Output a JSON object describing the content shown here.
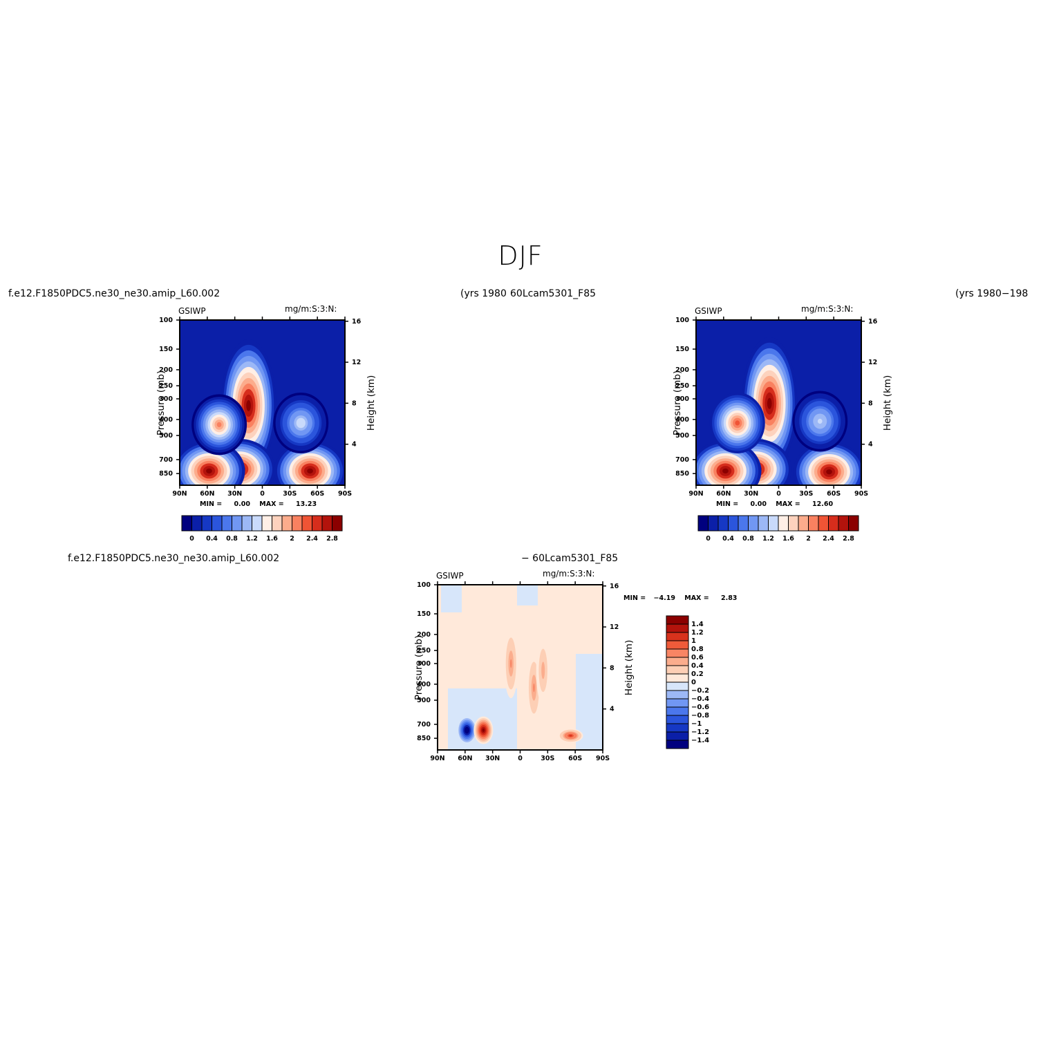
{
  "page": {
    "title": "DJF"
  },
  "headers": {
    "top_left_case": "f.e12.F1850PDC5.ne30_ne30.amip_L60.002",
    "top_center_years": "(yrs 1980",
    "top_center_case": "60Lcam5301_F85",
    "top_right_years": "(yrs 1980−198",
    "bottom_left_case": "f.e12.F1850PDC5.ne30_ne30.amip_L60.002",
    "bottom_center_case": "− 60Lcam5301_F85"
  },
  "colors": {
    "cool": [
      "#00007f",
      "#0b1fa8",
      "#1638c4",
      "#2b55dc",
      "#4b77ec",
      "#7197f3",
      "#9cb8f6",
      "#c9dafb"
    ],
    "warm": [
      "#ffefe6",
      "#fdd2bd",
      "#fcac8c",
      "#f98160",
      "#f05435",
      "#d62d1c",
      "#b3130c",
      "#8b0000"
    ],
    "diff": [
      "#00007f",
      "#0b1fa8",
      "#1638c4",
      "#2b55dc",
      "#4b77ec",
      "#7197f3",
      "#9cb8f6",
      "#d7e6fa",
      "#ffe9da",
      "#fdcfb5",
      "#fbad8d",
      "#f88564",
      "#ef5b3a",
      "#d8321c",
      "#b3130c",
      "#8b0000"
    ]
  },
  "chart_data": [
    {
      "type": "heatmap",
      "panel": "case1",
      "var_label": "GSIWP",
      "units_label": "mg/m:S:3:N:",
      "xlabel": "",
      "ylabel": "Pressure (mb)",
      "ylabel_right": "Height (km)",
      "x_ticks": [
        "90N",
        "60N",
        "30N",
        "0",
        "30S",
        "60S",
        "90S"
      ],
      "y_ticks": [
        "100",
        "150",
        "200",
        "250",
        "300",
        "400",
        "500",
        "700",
        "850"
      ],
      "y_ticks_right": [
        "16",
        "12",
        "8",
        "4"
      ],
      "stats": {
        "min_label": "MIN =",
        "min": "0.00",
        "max_label": "MAX =",
        "max": "13.23"
      },
      "colorbar_labels": [
        "0",
        "0.4",
        "0.8",
        "1.2",
        "1.6",
        "2",
        "2.4",
        "2.8"
      ],
      "features": [
        {
          "lat": 15,
          "p": 330,
          "value": 3.0
        },
        {
          "lat": 25,
          "p": 800,
          "value": 3.0
        },
        {
          "lat": 58,
          "p": 820,
          "value": 3.0
        },
        {
          "lat": -52,
          "p": 820,
          "value": 3.0
        },
        {
          "lat": 47,
          "p": 430,
          "value": 2.0
        },
        {
          "lat": -42,
          "p": 420,
          "value": 1.4
        }
      ]
    },
    {
      "type": "heatmap",
      "panel": "case2",
      "var_label": "GSIWP",
      "units_label": "mg/m:S:3:N:",
      "xlabel": "",
      "ylabel": "Pressure (mb)",
      "ylabel_right": "Height (km)",
      "x_ticks": [
        "90N",
        "60N",
        "30N",
        "0",
        "30S",
        "60S",
        "90S"
      ],
      "y_ticks": [
        "100",
        "150",
        "200",
        "250",
        "300",
        "400",
        "500",
        "700",
        "850"
      ],
      "y_ticks_right": [
        "16",
        "12",
        "8",
        "4"
      ],
      "stats": {
        "min_label": "MIN =",
        "min": "0.00",
        "max_label": "MAX =",
        "max": "12.60"
      },
      "colorbar_labels": [
        "0",
        "0.4",
        "0.8",
        "1.2",
        "1.6",
        "2",
        "2.4",
        "2.8"
      ],
      "features": [
        {
          "lat": 10,
          "p": 320,
          "value": 3.0
        },
        {
          "lat": 25,
          "p": 800,
          "value": 3.0
        },
        {
          "lat": 58,
          "p": 820,
          "value": 3.0
        },
        {
          "lat": -55,
          "p": 830,
          "value": 3.0
        },
        {
          "lat": 45,
          "p": 420,
          "value": 2.2
        },
        {
          "lat": -45,
          "p": 410,
          "value": 1.3
        }
      ]
    },
    {
      "type": "heatmap",
      "panel": "difference",
      "var_label": "GSIWP",
      "units_label": "mg/m:S:3:N:",
      "xlabel": "",
      "ylabel": "Pressure (mb)",
      "ylabel_right": "Height (km)",
      "x_ticks": [
        "90N",
        "60N",
        "30N",
        "0",
        "30S",
        "60S",
        "90S"
      ],
      "y_ticks": [
        "100",
        "150",
        "200",
        "250",
        "300",
        "400",
        "500",
        "700",
        "850"
      ],
      "y_ticks_right": [
        "16",
        "12",
        "8",
        "4"
      ],
      "stats": {
        "min_label": "MIN =",
        "min": "−4.19",
        "max_label": "MAX =",
        "max": "2.83"
      },
      "colorbar_labels": [
        "1.4",
        "1.2",
        "1",
        "0.8",
        "0.6",
        "0.4",
        "0.2",
        "0",
        "−0.2",
        "−0.4",
        "−0.6",
        "−0.8",
        "−1",
        "−1.2",
        "−1.4"
      ],
      "features": [
        {
          "lat": 58,
          "p": 760,
          "value": -1.6
        },
        {
          "lat": 40,
          "p": 760,
          "value": 1.5
        },
        {
          "lat": -55,
          "p": 820,
          "value": 1.0
        },
        {
          "lat": 10,
          "p": 300,
          "value": 0.6
        },
        {
          "lat": -15,
          "p": 420,
          "value": 0.6
        },
        {
          "lat": -25,
          "p": 330,
          "value": 0.5
        }
      ]
    }
  ]
}
